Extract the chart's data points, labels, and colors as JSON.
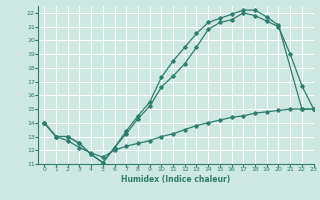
{
  "title": "",
  "xlabel": "Humidex (Indice chaleur)",
  "xlim": [
    -0.5,
    23
  ],
  "ylim": [
    11,
    22.5
  ],
  "yticks": [
    11,
    12,
    13,
    14,
    15,
    16,
    17,
    18,
    19,
    20,
    21,
    22
  ],
  "xticks": [
    0,
    1,
    2,
    3,
    4,
    5,
    6,
    7,
    8,
    9,
    10,
    11,
    12,
    13,
    14,
    15,
    16,
    17,
    18,
    19,
    20,
    21,
    22,
    23
  ],
  "bg_color": "#cce8e0",
  "grid_color": "#ffffff",
  "line_color": "#2e7d6e",
  "line1_x": [
    0,
    1,
    2,
    3,
    4,
    5,
    6,
    7,
    8,
    9,
    10,
    11,
    12,
    13,
    14,
    15,
    16,
    17,
    18,
    19,
    20,
    21,
    22,
    23
  ],
  "line1_y": [
    14,
    13,
    13,
    12.5,
    11.7,
    11.1,
    12.2,
    13.2,
    14.3,
    15.2,
    16.6,
    17.4,
    18.3,
    19.5,
    20.8,
    21.3,
    21.5,
    22.0,
    21.8,
    21.4,
    21.0,
    19.0,
    16.7,
    15.0
  ],
  "line2_x": [
    0,
    1,
    2,
    3,
    4,
    5,
    6,
    7,
    8,
    9,
    10,
    11,
    12,
    13,
    14,
    15,
    16,
    17,
    18,
    19,
    20,
    22,
    23
  ],
  "line2_y": [
    14,
    13,
    13,
    12.5,
    11.7,
    11.1,
    12.2,
    13.4,
    14.5,
    15.5,
    17.3,
    18.5,
    19.5,
    20.5,
    21.3,
    21.6,
    21.9,
    22.2,
    22.2,
    21.7,
    21.1,
    15.0,
    15.0
  ],
  "line3_x": [
    0,
    1,
    2,
    3,
    4,
    5,
    6,
    7,
    8,
    9,
    10,
    11,
    12,
    13,
    14,
    15,
    16,
    17,
    18,
    19,
    20,
    21,
    22,
    23
  ],
  "line3_y": [
    14,
    13,
    12.7,
    12.2,
    11.8,
    11.5,
    12.0,
    12.3,
    12.5,
    12.7,
    13.0,
    13.2,
    13.5,
    13.8,
    14.0,
    14.2,
    14.4,
    14.5,
    14.7,
    14.8,
    14.9,
    15.0,
    15.0,
    15.0
  ]
}
